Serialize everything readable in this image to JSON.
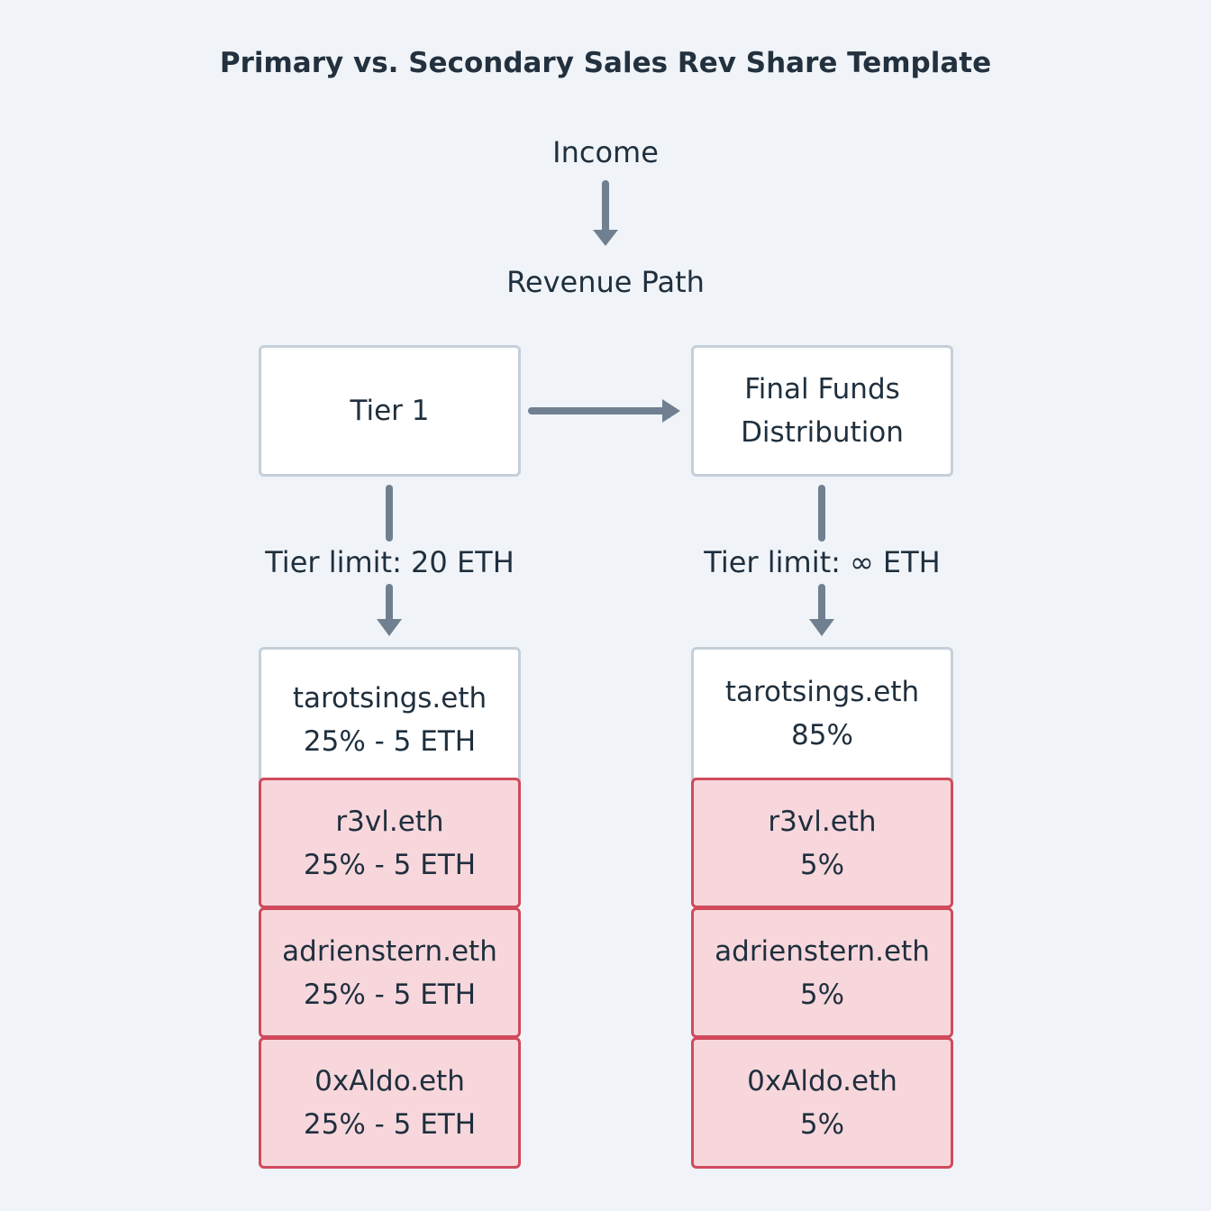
{
  "title": "Primary vs. Secondary Sales Rev Share Template",
  "income_label": "Income",
  "revenue_path_label": "Revenue Path",
  "tiers": [
    {
      "name": "Tier 1",
      "limit_label": "Tier limit: 20 ETH",
      "recipients": [
        {
          "name": "tarotsings.eth",
          "share": "25% - 5 ETH",
          "highlight": false
        },
        {
          "name": "r3vl.eth",
          "share": "25% - 5 ETH",
          "highlight": true
        },
        {
          "name": "adrienstern.eth",
          "share": "25% - 5 ETH",
          "highlight": true
        },
        {
          "name": "0xAldo.eth",
          "share": "25% - 5 ETH",
          "highlight": true
        }
      ]
    },
    {
      "name_line1": "Final Funds",
      "name_line2": "Distribution",
      "limit_label": "Tier limit: ∞ ETH",
      "recipients": [
        {
          "name": "tarotsings.eth",
          "share": "85%",
          "highlight": false
        },
        {
          "name": "r3vl.eth",
          "share": "5%",
          "highlight": true
        },
        {
          "name": "adrienstern.eth",
          "share": "5%",
          "highlight": true
        },
        {
          "name": "0xAldo.eth",
          "share": "5%",
          "highlight": true
        }
      ]
    }
  ],
  "colors": {
    "background": "#f0f4f8",
    "box_border": "#c5cfd9",
    "highlight_fill": "#f7d7dc",
    "highlight_border": "#d04a5c",
    "arrow": "#708090"
  }
}
